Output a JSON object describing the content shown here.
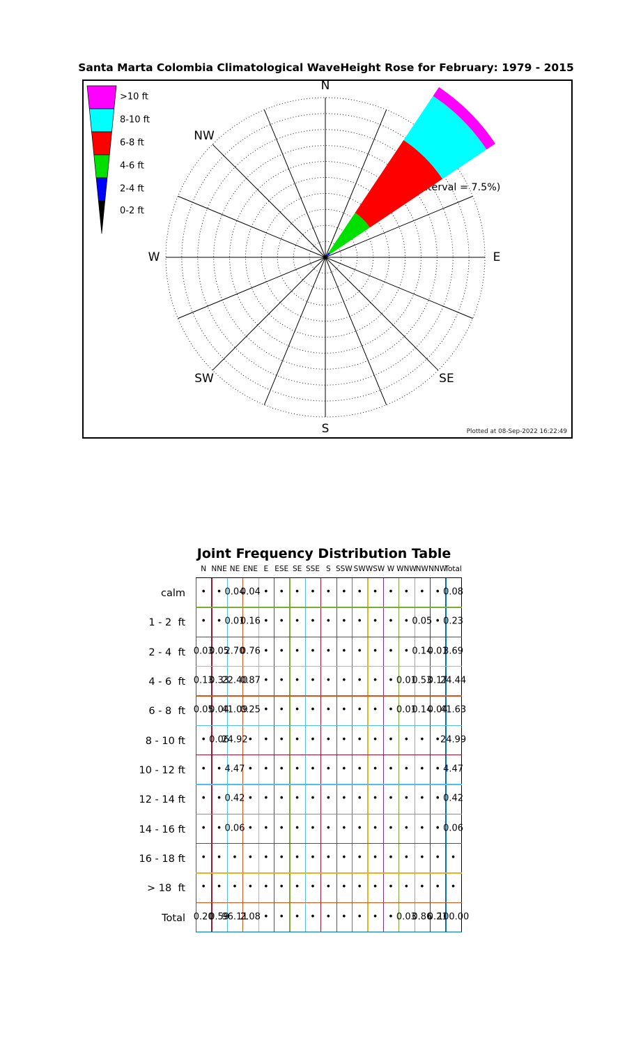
{
  "page_title": "Santa Marta Colombia Climatological WaveHeight Rose for February: 1979 - 2015",
  "rose": {
    "ring_label": "75% (interval = 7.5%)",
    "plotted_at": "Plotted at 08-Sep-2022 16:22:49",
    "compass": [
      {
        "label": "N",
        "angle": 0
      },
      {
        "label": "NE",
        "angle": 45
      },
      {
        "label": "E",
        "angle": 90
      },
      {
        "label": "SE",
        "angle": 135
      },
      {
        "label": "S",
        "angle": 180
      },
      {
        "label": "SW",
        "angle": 225
      },
      {
        "label": "W",
        "angle": 270
      },
      {
        "label": "NW",
        "angle": 315
      }
    ],
    "rings": {
      "count": 10,
      "interval_pct": 7.5,
      "max_pct": 75
    },
    "spokes": 16,
    "legend": [
      {
        "label": ">10 ft",
        "color": "#ff00ff"
      },
      {
        "label": "8-10 ft",
        "color": "#00ffff"
      },
      {
        "label": "6-8 ft",
        "color": "#ff0000"
      },
      {
        "label": "4-6 ft",
        "color": "#00e000"
      },
      {
        "label": "2-4 ft",
        "color": "#0000ff"
      },
      {
        "label": "0-2 ft",
        "color": "#000000"
      }
    ],
    "wedge": {
      "direction": "NE",
      "center_angle_deg": 45,
      "width_deg": 22.5,
      "segments": [
        {
          "bin": "0-2 ft",
          "color": "#000000",
          "from_pct": 0.0,
          "to_pct": 0.05
        },
        {
          "bin": "2-4 ft",
          "color": "#0000ff",
          "from_pct": 0.05,
          "to_pct": 2.75
        },
        {
          "bin": "4-6 ft",
          "color": "#00e000",
          "from_pct": 2.75,
          "to_pct": 25.15
        },
        {
          "bin": "6-8 ft",
          "color": "#ff0000",
          "from_pct": 25.15,
          "to_pct": 66.24
        },
        {
          "bin": "8-10 ft",
          "color": "#00ffff",
          "from_pct": 66.24,
          "to_pct": 91.16
        },
        {
          "bin": ">10 ft",
          "color": "#ff00ff",
          "from_pct": 91.16,
          "to_pct": 96.11
        }
      ]
    }
  },
  "table": {
    "title": "Joint Frequency Distribution Table",
    "grid": {
      "vline_colors": [
        "#0072BD",
        "#A2142F",
        "#4DBEEE",
        "#D95319",
        "#EDB120",
        "#7E2F8E",
        "#77AC30",
        "#4DBEEE",
        "#A2142F",
        "#0072BD",
        "#D95319",
        "#EDB120",
        "#7E2F8E",
        "#77AC30",
        "#4DBEEE",
        "#A2142F",
        "#0072BD",
        "#000000"
      ],
      "hline_colors": [
        "#000000",
        "#77AC30",
        "#7E2F8E",
        "#EDB120",
        "#D95319",
        "#4DBEEE",
        "#A2142F",
        "#4DBEEE",
        "#77AC30",
        "#7E2F8E",
        "#EDB120",
        "#D95319",
        "#0072BD"
      ]
    }
  },
  "chart_data": [
    {
      "type": "wind_rose",
      "subtype": "wave-height rose",
      "title": "Santa Marta Colombia Climatological WaveHeight Rose for February: 1979 - 2015",
      "location": "Santa Marta Colombia",
      "month": "February",
      "period": "1979 - 2015",
      "units": "percent frequency of occurrence",
      "radial_axis": {
        "max_pct": 75,
        "interval_pct": 7.5,
        "label": "75% (interval = 7.5%)"
      },
      "direction_sectors": 16,
      "height_bins_ft": [
        "0-2",
        "2-4",
        "4-6",
        "6-8",
        "8-10",
        ">10"
      ],
      "bin_colors": [
        "#000000",
        "#0000ff",
        "#00e000",
        "#ff0000",
        "#00ffff",
        "#ff00ff"
      ],
      "dominant_direction": "NE",
      "ne_sector_stack_pct": {
        "0-2": 0.05,
        "2-4": 2.7,
        "4-6": 22.4,
        "6-8": 41.09,
        "8-10": 24.92,
        ">10": 4.95
      },
      "footer": "Plotted at 08-Sep-2022 16:22:49"
    },
    {
      "type": "table",
      "title": "Joint Frequency Distribution Table",
      "dot_symbol": "•",
      "columns": [
        "N",
        "NNE",
        "NE",
        "ENE",
        "E",
        "ESE",
        "SE",
        "SSE",
        "S",
        "SSW",
        "SW",
        "WSW",
        "W",
        "WNW",
        "NW",
        "NNW",
        "Total"
      ],
      "row_labels": [
        "calm",
        "1 - 2  ft",
        "2 - 4  ft",
        "4 - 6  ft",
        "6 - 8  ft",
        "8 - 10 ft",
        "10 - 12 ft",
        "12 - 14 ft",
        "14 - 16 ft",
        "16 - 18 ft",
        "> 18  ft",
        "Total"
      ],
      "values": [
        [
          "•",
          "•",
          "0.04",
          "0.04",
          "•",
          "•",
          "•",
          "•",
          "•",
          "•",
          "•",
          "•",
          "•",
          "•",
          "•",
          "•",
          "0.08"
        ],
        [
          "•",
          "•",
          "0.01",
          "0.16",
          "•",
          "•",
          "•",
          "•",
          "•",
          "•",
          "•",
          "•",
          "•",
          "•",
          "0.05",
          "•",
          "0.23"
        ],
        [
          "0.03",
          "0.05",
          "2.70",
          "0.76",
          "•",
          "•",
          "•",
          "•",
          "•",
          "•",
          "•",
          "•",
          "•",
          "•",
          "0.14",
          "0.01",
          "3.69"
        ],
        [
          "0.13",
          "0.33",
          "22.40",
          "0.87",
          "•",
          "•",
          "•",
          "•",
          "•",
          "•",
          "•",
          "•",
          "•",
          "0.01",
          "0.53",
          "0.17",
          "24.44"
        ],
        [
          "0.05",
          "0.04",
          "41.09",
          "0.25",
          "•",
          "•",
          "•",
          "•",
          "•",
          "•",
          "•",
          "•",
          "•",
          "0.01",
          "0.14",
          "0.04",
          "41.63"
        ],
        [
          "•",
          "0.06",
          "24.92",
          "•",
          "•",
          "•",
          "•",
          "•",
          "•",
          "•",
          "•",
          "•",
          "•",
          "•",
          "•",
          "•",
          "24.99"
        ],
        [
          "•",
          "•",
          "4.47",
          "•",
          "•",
          "•",
          "•",
          "•",
          "•",
          "•",
          "•",
          "•",
          "•",
          "•",
          "•",
          "•",
          "4.47"
        ],
        [
          "•",
          "•",
          "0.42",
          "•",
          "•",
          "•",
          "•",
          "•",
          "•",
          "•",
          "•",
          "•",
          "•",
          "•",
          "•",
          "•",
          "0.42"
        ],
        [
          "•",
          "•",
          "0.06",
          "•",
          "•",
          "•",
          "•",
          "•",
          "•",
          "•",
          "•",
          "•",
          "•",
          "•",
          "•",
          "•",
          "0.06"
        ],
        [
          "•",
          "•",
          "•",
          "•",
          "•",
          "•",
          "•",
          "•",
          "•",
          "•",
          "•",
          "•",
          "•",
          "•",
          "•",
          "•",
          "•"
        ],
        [
          "•",
          "•",
          "•",
          "•",
          "•",
          "•",
          "•",
          "•",
          "•",
          "•",
          "•",
          "•",
          "•",
          "•",
          "•",
          "•",
          "•"
        ],
        [
          "0.20",
          "0.59",
          "96.11",
          "2.08",
          "•",
          "•",
          "•",
          "•",
          "•",
          "•",
          "•",
          "•",
          "•",
          "0.03",
          "0.86",
          "0.21",
          "100.00"
        ]
      ]
    }
  ]
}
